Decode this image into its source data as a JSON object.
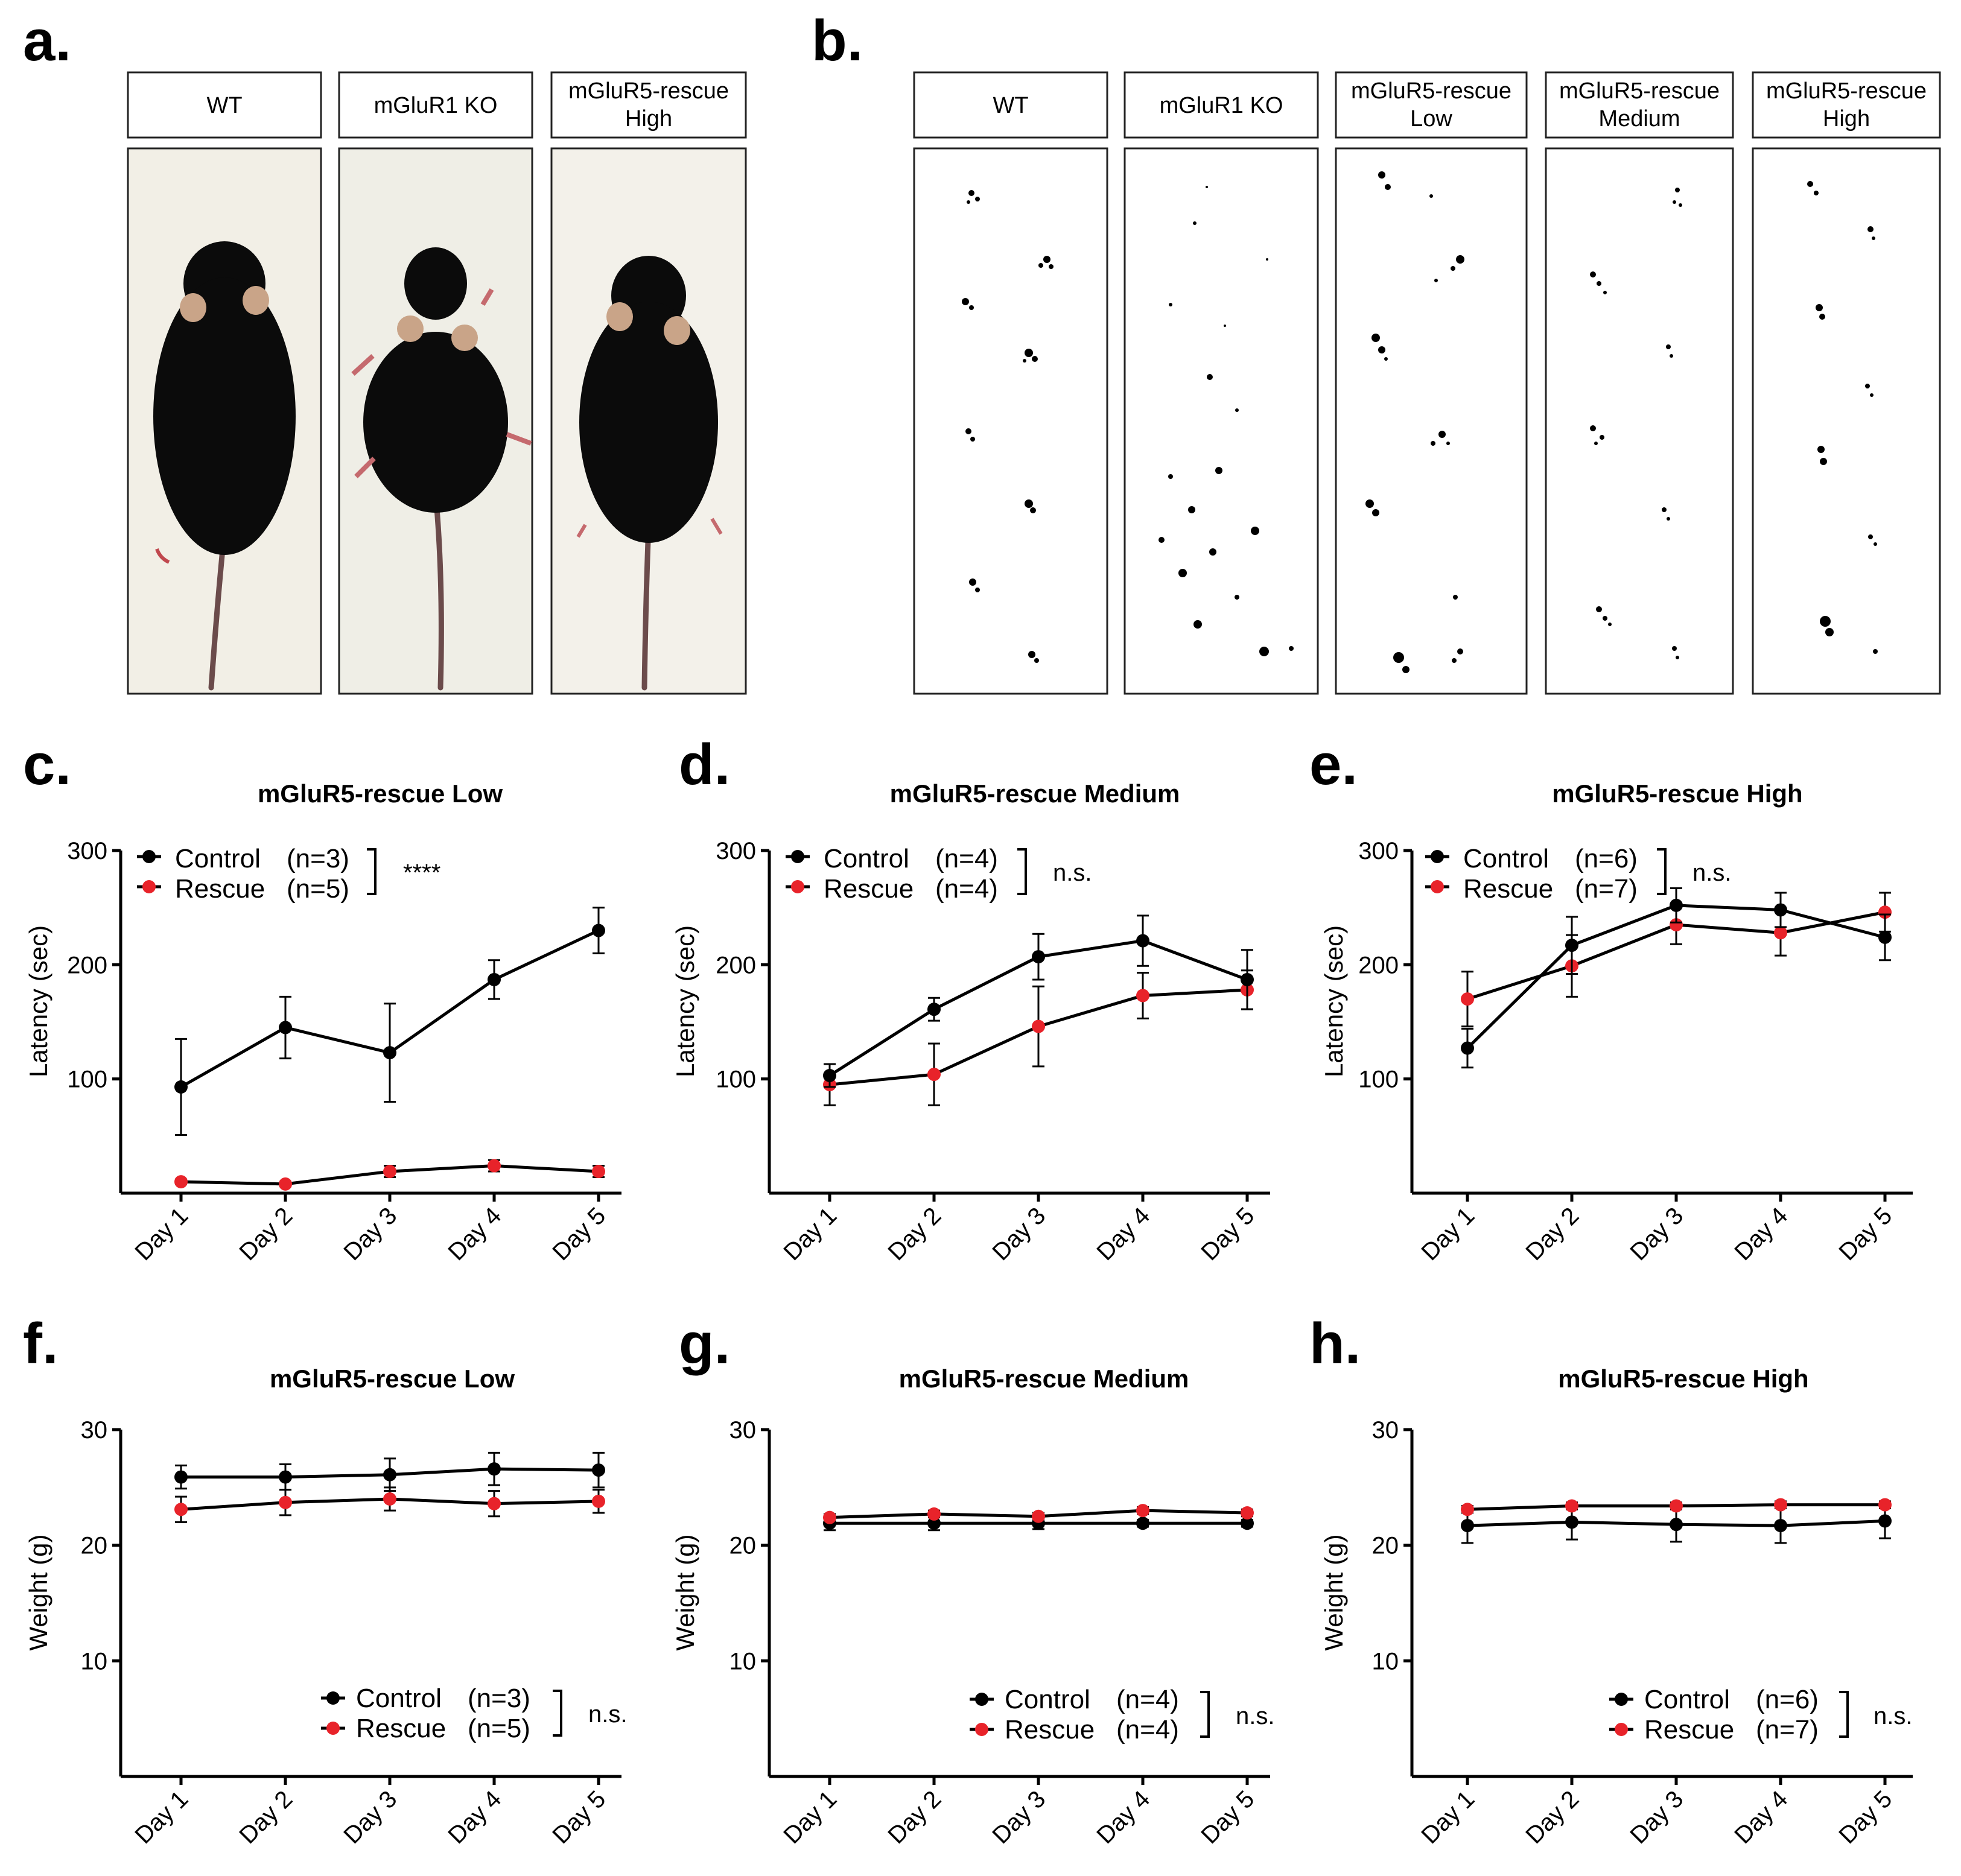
{
  "panel_labels": [
    "a.",
    "b.",
    "c.",
    "d.",
    "e.",
    "f.",
    "g.",
    "h."
  ],
  "panel_a": {
    "labels": [
      "WT",
      "mGluR1 KO",
      "mGluR5-rescue",
      "High"
    ]
  },
  "panel_b": {
    "labels": [
      "WT",
      "mGluR1 KO",
      "mGluR5-rescue",
      "Low",
      "mGluR5-rescue",
      "Medium",
      "mGluR5-rescue",
      "High"
    ]
  },
  "colors": {
    "control": "#000000",
    "rescue": "#e8232a"
  },
  "chart_data": [
    {
      "panel": "c.",
      "type": "line",
      "title": "mGluR5-rescue Low",
      "xlabel": "",
      "ylabel": "Latency (sec)",
      "categories": [
        "Day 1",
        "Day 2",
        "Day 3",
        "Day 4",
        "Day 5"
      ],
      "ylim": [
        0,
        300
      ],
      "yticks": [
        "100",
        "200",
        "300"
      ],
      "significance": "****",
      "series": [
        {
          "name": "Control",
          "n_label": "(n=3)",
          "color": "#000000",
          "values": [
            93,
            145,
            123,
            187,
            230
          ],
          "errors": [
            42,
            27,
            43,
            17,
            20
          ]
        },
        {
          "name": "Rescue",
          "n_label": "(n=5)",
          "color": "#e8232a",
          "values": [
            10,
            8,
            19,
            24,
            19
          ],
          "errors": [
            2,
            2,
            5,
            5,
            5
          ]
        }
      ]
    },
    {
      "panel": "d.",
      "type": "line",
      "title": "mGluR5-rescue Medium",
      "xlabel": "",
      "ylabel": "Latency (sec)",
      "categories": [
        "Day 1",
        "Day 2",
        "Day 3",
        "Day 4",
        "Day 5"
      ],
      "ylim": [
        0,
        300
      ],
      "yticks": [
        "100",
        "200",
        "300"
      ],
      "significance": "n.s.",
      "series": [
        {
          "name": "Control",
          "n_label": "(n=4)",
          "color": "#000000",
          "values": [
            103,
            161,
            207,
            221,
            187
          ],
          "errors": [
            10,
            10,
            20,
            22,
            26
          ]
        },
        {
          "name": "Rescue",
          "n_label": "(n=4)",
          "color": "#e8232a",
          "values": [
            95,
            104,
            146,
            173,
            178
          ],
          "errors": [
            18,
            27,
            35,
            20,
            17
          ]
        }
      ]
    },
    {
      "panel": "e.",
      "type": "line",
      "title": "mGluR5-rescue High",
      "xlabel": "",
      "ylabel": "Latency (sec)",
      "categories": [
        "Day 1",
        "Day 2",
        "Day 3",
        "Day 4",
        "Day 5"
      ],
      "ylim": [
        0,
        300
      ],
      "yticks": [
        "100",
        "200",
        "300"
      ],
      "significance": "n.s.",
      "series": [
        {
          "name": "Control",
          "n_label": "(n=6)",
          "color": "#000000",
          "values": [
            127,
            217,
            252,
            248,
            224
          ],
          "errors": [
            17,
            25,
            15,
            15,
            20
          ]
        },
        {
          "name": "Rescue",
          "n_label": "(n=7)",
          "color": "#e8232a",
          "values": [
            170,
            199,
            235,
            228,
            246
          ],
          "errors": [
            24,
            27,
            17,
            20,
            17
          ]
        }
      ]
    },
    {
      "panel": "f.",
      "type": "line",
      "title": "mGluR5-rescue Low",
      "xlabel": "",
      "ylabel": "Weight (g)",
      "categories": [
        "Day 1",
        "Day 2",
        "Day 3",
        "Day 4",
        "Day 5"
      ],
      "ylim": [
        0,
        30
      ],
      "yticks": [
        "10",
        "20",
        "30"
      ],
      "significance": "n.s.",
      "series": [
        {
          "name": "Control",
          "n_label": "(n=3)",
          "color": "#000000",
          "values": [
            25.9,
            25.9,
            26.1,
            26.6,
            26.5
          ],
          "errors": [
            1.0,
            1.1,
            1.4,
            1.4,
            1.5
          ]
        },
        {
          "name": "Rescue",
          "n_label": "(n=5)",
          "color": "#e8232a",
          "values": [
            23.1,
            23.7,
            24.0,
            23.6,
            23.8
          ],
          "errors": [
            1.1,
            1.1,
            1.0,
            1.1,
            1.0
          ]
        }
      ]
    },
    {
      "panel": "g.",
      "type": "line",
      "title": "mGluR5-rescue Medium",
      "xlabel": "",
      "ylabel": "Weight (g)",
      "categories": [
        "Day 1",
        "Day 2",
        "Day 3",
        "Day 4",
        "Day 5"
      ],
      "ylim": [
        0,
        30
      ],
      "yticks": [
        "10",
        "20",
        "30"
      ],
      "significance": "n.s.",
      "series": [
        {
          "name": "Control",
          "n_label": "(n=4)",
          "color": "#000000",
          "values": [
            21.9,
            21.9,
            21.9,
            21.9,
            21.9
          ],
          "errors": [
            0.6,
            0.6,
            0.5,
            0.3,
            0.3
          ]
        },
        {
          "name": "Rescue",
          "n_label": "(n=4)",
          "color": "#e8232a",
          "values": [
            22.4,
            22.7,
            22.5,
            23.0,
            22.8
          ],
          "errors": [
            0.3,
            0.3,
            0.3,
            0.3,
            0.3
          ]
        }
      ]
    },
    {
      "panel": "h.",
      "type": "line",
      "title": "mGluR5-rescue High",
      "xlabel": "",
      "ylabel": "Weight (g)",
      "categories": [
        "Day 1",
        "Day 2",
        "Day 3",
        "Day 4",
        "Day 5"
      ],
      "ylim": [
        0,
        30
      ],
      "yticks": [
        "10",
        "20",
        "30"
      ],
      "significance": "n.s.",
      "series": [
        {
          "name": "Control",
          "n_label": "(n=6)",
          "color": "#000000",
          "values": [
            21.7,
            22.0,
            21.8,
            21.7,
            22.1
          ],
          "errors": [
            1.5,
            1.5,
            1.5,
            1.5,
            1.5
          ]
        },
        {
          "name": "Rescue",
          "n_label": "(n=7)",
          "color": "#e8232a",
          "values": [
            23.1,
            23.4,
            23.4,
            23.5,
            23.5
          ],
          "errors": [
            0.3,
            0.3,
            0.3,
            0.3,
            0.3
          ]
        }
      ]
    }
  ]
}
